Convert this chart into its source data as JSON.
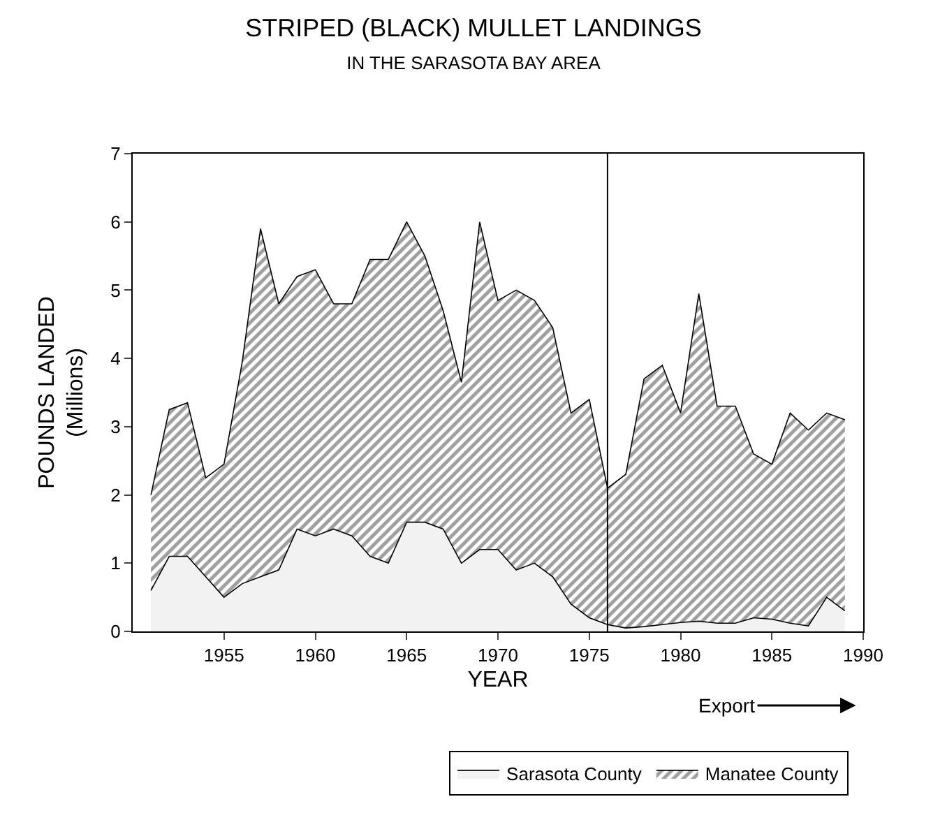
{
  "chart_data": {
    "type": "area",
    "stacked": true,
    "title": "STRIPED (BLACK) MULLET LANDINGS",
    "subtitle": "IN THE SARASOTA BAY AREA",
    "xlabel": "YEAR",
    "ylabel": "POUNDS LANDED\n(Millions)",
    "x": [
      1951,
      1952,
      1953,
      1954,
      1955,
      1956,
      1957,
      1958,
      1959,
      1960,
      1961,
      1962,
      1963,
      1964,
      1965,
      1966,
      1967,
      1968,
      1969,
      1970,
      1971,
      1972,
      1973,
      1974,
      1975,
      1976,
      1977,
      1978,
      1979,
      1980,
      1981,
      1982,
      1983,
      1984,
      1985,
      1986,
      1987,
      1988,
      1989
    ],
    "series": [
      {
        "name": "Sarasota County",
        "color": "#f2f2f2",
        "values": [
          0.6,
          1.1,
          1.1,
          0.8,
          0.5,
          0.7,
          0.8,
          0.9,
          1.5,
          1.4,
          1.5,
          1.4,
          1.1,
          1.0,
          1.6,
          1.6,
          1.5,
          1.0,
          1.2,
          1.2,
          0.9,
          1.0,
          0.8,
          0.4,
          0.2,
          0.1,
          0.05,
          0.07,
          0.1,
          0.13,
          0.15,
          0.12,
          0.12,
          0.2,
          0.18,
          0.12,
          0.08,
          0.5,
          0.3
        ]
      },
      {
        "name": "Manatee County",
        "color": "#404040",
        "values": [
          1.4,
          2.15,
          2.25,
          1.45,
          1.95,
          3.25,
          5.1,
          3.9,
          3.7,
          3.9,
          3.3,
          3.4,
          4.35,
          4.45,
          4.4,
          3.9,
          3.2,
          2.65,
          4.8,
          3.65,
          4.1,
          3.85,
          3.65,
          2.8,
          3.2,
          2.0,
          2.25,
          3.63,
          3.8,
          3.07,
          4.8,
          3.18,
          3.18,
          2.4,
          2.27,
          3.08,
          2.87,
          2.7,
          2.8
        ]
      }
    ],
    "xlim": [
      1950,
      1990
    ],
    "xticks": [
      1955,
      1960,
      1965,
      1970,
      1975,
      1980,
      1985,
      1990
    ],
    "ylim": [
      0,
      7
    ],
    "yticks": [
      0,
      1,
      2,
      3,
      4,
      5,
      6,
      7
    ],
    "ref_lines": [
      {
        "axis": "x",
        "value": 1976,
        "color": "#000000"
      }
    ],
    "annotations": [
      "Export"
    ],
    "legend": "bottom"
  }
}
